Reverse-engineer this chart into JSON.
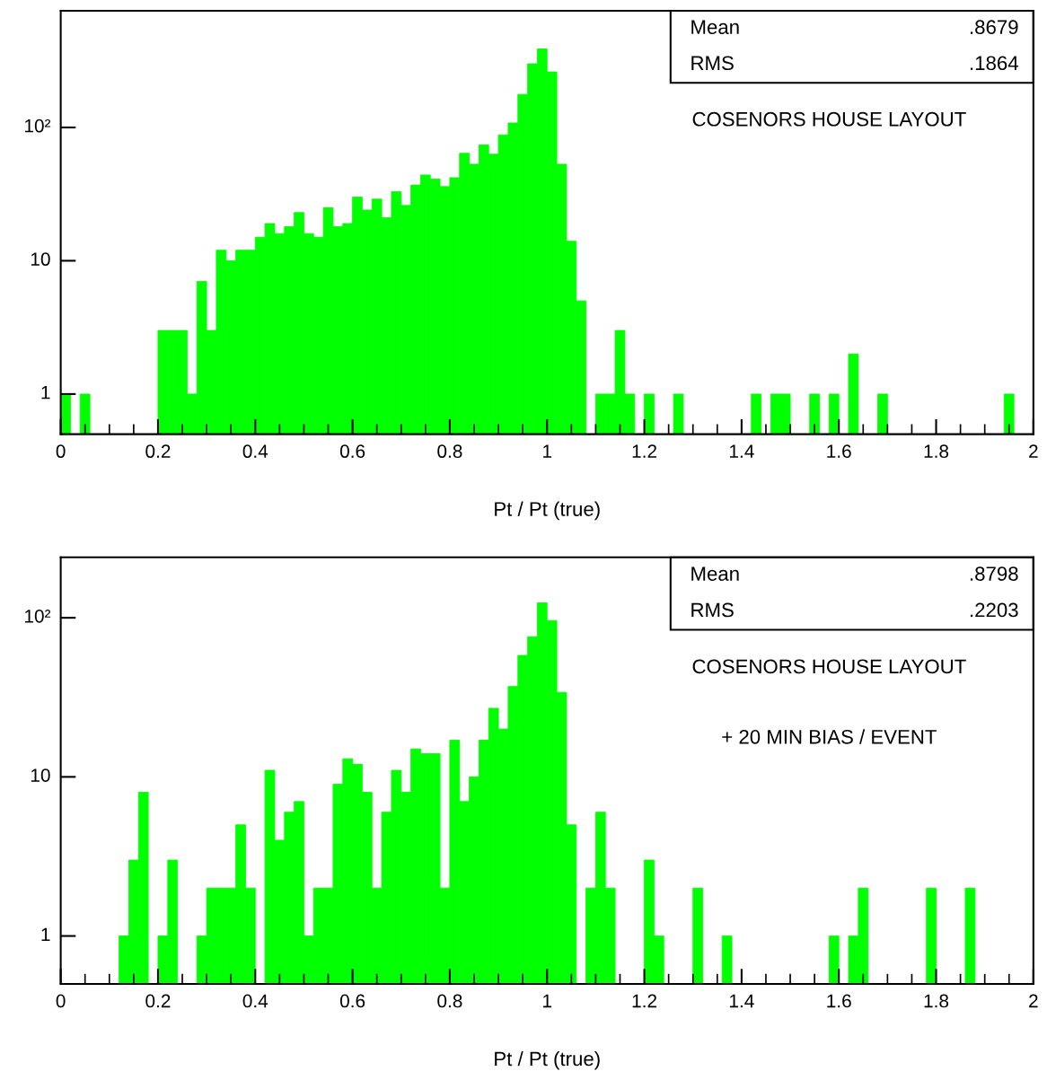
{
  "chart_data": [
    {
      "type": "histogram",
      "xlabel": "Pt / Pt (true)",
      "color": "#00ff00",
      "log": "y",
      "bins": [
        0,
        0.02,
        0.04,
        0.06,
        0.08,
        0.1,
        0.12,
        0.14,
        0.16,
        0.18,
        0.2,
        0.22,
        0.24,
        0.26,
        0.28,
        0.3,
        0.32,
        0.34,
        0.36,
        0.38,
        0.4,
        0.42,
        0.44,
        0.46,
        0.48,
        0.5,
        0.52,
        0.54,
        0.56,
        0.58,
        0.6,
        0.62,
        0.64,
        0.66,
        0.68,
        0.7,
        0.72,
        0.74,
        0.76,
        0.78,
        0.8,
        0.82,
        0.84,
        0.86,
        0.88,
        0.9,
        0.92,
        0.94,
        0.96,
        0.98,
        1,
        1.02,
        1.04,
        1.06,
        1.08,
        1.1,
        1.12,
        1.14,
        1.16,
        1.18,
        1.2,
        1.22,
        1.24,
        1.26,
        1.28,
        1.3,
        1.32,
        1.34,
        1.36,
        1.38,
        1.4,
        1.42,
        1.44,
        1.46,
        1.48,
        1.5,
        1.52,
        1.54,
        1.56,
        1.58,
        1.6,
        1.62,
        1.64,
        1.66,
        1.68,
        1.7,
        1.72,
        1.74,
        1.76,
        1.78,
        1.8,
        1.82,
        1.84,
        1.86,
        1.88,
        1.9,
        1.92,
        1.94,
        1.96,
        1.98,
        2
      ],
      "values": [
        1,
        null,
        1,
        null,
        null,
        null,
        null,
        null,
        null,
        null,
        3,
        3,
        3,
        1,
        7,
        3,
        12,
        10,
        12,
        12,
        15,
        19,
        16,
        18,
        23,
        16,
        15,
        25,
        18,
        19,
        30,
        24,
        29,
        21,
        33,
        26,
        37,
        44,
        41,
        36,
        42,
        64,
        53,
        74,
        63,
        88,
        108,
        177,
        300,
        388,
        261,
        53,
        14,
        5,
        null,
        1,
        1,
        3,
        1,
        null,
        1,
        null,
        null,
        1,
        null,
        null,
        null,
        null,
        null,
        null,
        null,
        1,
        null,
        1,
        1,
        null,
        null,
        1,
        null,
        1,
        null,
        2,
        null,
        null,
        1,
        null,
        null,
        null,
        null,
        null,
        null,
        null,
        null,
        null,
        null,
        null,
        null,
        1,
        null,
        null
      ],
      "xlim": [
        0,
        2
      ],
      "ylim": [
        0.5,
        750
      ],
      "xticks": [
        0,
        0.2,
        0.4,
        0.6,
        0.8,
        1,
        1.2,
        1.4,
        1.6,
        1.8,
        2
      ],
      "yticks": [
        1,
        10,
        {
          "value": 100,
          "label": "10²"
        }
      ],
      "annotations": [
        "Mean",
        ".8679",
        "RMS",
        ".1864",
        "COSENORS HOUSE LAYOUT"
      ]
    },
    {
      "type": "histogram",
      "xlabel": "Pt / Pt (true)",
      "color": "#00ff00",
      "log": "y",
      "bins": [
        0,
        0.02,
        0.04,
        0.06,
        0.08,
        0.1,
        0.12,
        0.14,
        0.16,
        0.18,
        0.2,
        0.22,
        0.24,
        0.26,
        0.28,
        0.3,
        0.32,
        0.34,
        0.36,
        0.38,
        0.4,
        0.42,
        0.44,
        0.46,
        0.48,
        0.5,
        0.52,
        0.54,
        0.56,
        0.58,
        0.6,
        0.62,
        0.64,
        0.66,
        0.68,
        0.7,
        0.72,
        0.74,
        0.76,
        0.78,
        0.8,
        0.82,
        0.84,
        0.86,
        0.88,
        0.9,
        0.92,
        0.94,
        0.96,
        0.98,
        1,
        1.02,
        1.04,
        1.06,
        1.08,
        1.1,
        1.12,
        1.14,
        1.16,
        1.18,
        1.2,
        1.22,
        1.24,
        1.26,
        1.28,
        1.3,
        1.32,
        1.34,
        1.36,
        1.38,
        1.4,
        1.42,
        1.44,
        1.46,
        1.48,
        1.5,
        1.52,
        1.54,
        1.56,
        1.58,
        1.6,
        1.62,
        1.64,
        1.66,
        1.68,
        1.7,
        1.72,
        1.74,
        1.76,
        1.78,
        1.8,
        1.82,
        1.84,
        1.86,
        1.88,
        1.9,
        1.92,
        1.94,
        1.96,
        1.98,
        2
      ],
      "values": [
        null,
        null,
        null,
        null,
        null,
        null,
        1,
        3,
        8,
        null,
        1,
        3,
        null,
        null,
        1,
        2,
        2,
        2,
        5,
        2,
        null,
        11,
        4,
        6,
        7,
        1,
        2,
        2,
        9,
        13,
        12,
        8,
        2,
        6,
        11,
        8,
        15,
        14,
        14,
        2,
        17,
        7,
        10,
        17,
        27,
        20,
        37,
        58,
        76,
        124,
        96,
        34,
        5,
        null,
        2,
        6,
        2,
        null,
        null,
        null,
        3,
        1,
        null,
        null,
        null,
        2,
        null,
        null,
        1,
        null,
        null,
        null,
        null,
        null,
        null,
        null,
        null,
        null,
        null,
        1,
        null,
        1,
        2,
        null,
        null,
        null,
        null,
        null,
        null,
        2,
        null,
        null,
        null,
        2,
        null,
        null,
        null,
        null,
        null,
        null
      ],
      "xlim": [
        0,
        2
      ],
      "ylim": [
        0.5,
        240
      ],
      "xticks": [
        0,
        0.2,
        0.4,
        0.6,
        0.8,
        1,
        1.2,
        1.4,
        1.6,
        1.8,
        2
      ],
      "yticks": [
        1,
        10,
        {
          "value": 100,
          "label": "10²"
        }
      ],
      "annotations": [
        "Mean",
        ".8798",
        "RMS",
        ".2203",
        "COSENORS HOUSE LAYOUT",
        "+ 20 MIN BIAS / EVENT"
      ]
    }
  ]
}
